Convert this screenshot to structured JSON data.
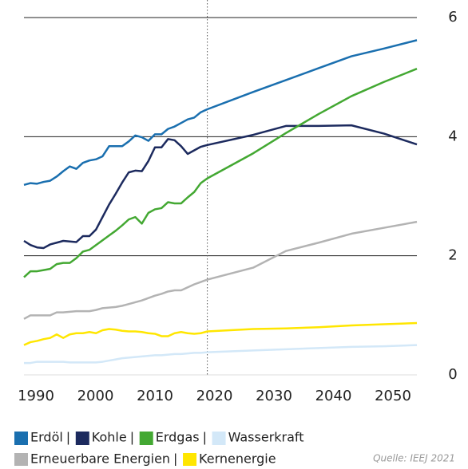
{
  "chart_data": {
    "type": "line",
    "x": [
      1990,
      1991,
      1992,
      1993,
      1994,
      1995,
      1996,
      1997,
      1998,
      1999,
      2000,
      2001,
      2002,
      2003,
      2004,
      2005,
      2006,
      2007,
      2008,
      2009,
      2010,
      2011,
      2012,
      2013,
      2014,
      2015,
      2016,
      2017,
      2018,
      2025,
      2030,
      2035,
      2040,
      2045,
      2050
    ],
    "series": [
      {
        "name": "Erdöl",
        "color": "#1a6faf",
        "values": [
          3.19,
          3.22,
          3.21,
          3.24,
          3.26,
          3.33,
          3.42,
          3.5,
          3.46,
          3.56,
          3.6,
          3.62,
          3.67,
          3.84,
          3.84,
          3.84,
          3.92,
          4.02,
          3.99,
          3.93,
          4.04,
          4.04,
          4.13,
          4.17,
          4.23,
          4.29,
          4.32,
          4.41,
          4.46,
          4.75,
          4.95,
          5.15,
          5.35,
          5.48,
          5.62
        ]
      },
      {
        "name": "Kohle",
        "color": "#1c2a5e",
        "values": [
          2.25,
          2.18,
          2.14,
          2.13,
          2.19,
          2.22,
          2.25,
          2.24,
          2.23,
          2.33,
          2.33,
          2.44,
          2.65,
          2.86,
          3.04,
          3.23,
          3.4,
          3.43,
          3.42,
          3.59,
          3.82,
          3.82,
          3.96,
          3.94,
          3.84,
          3.71,
          3.77,
          3.83,
          3.86,
          4.03,
          4.18,
          4.18,
          4.19,
          4.05,
          3.87
        ]
      },
      {
        "name": "Erdgas",
        "color": "#43a832",
        "values": [
          1.64,
          1.74,
          1.74,
          1.76,
          1.78,
          1.86,
          1.88,
          1.88,
          1.96,
          2.07,
          2.1,
          2.18,
          2.26,
          2.34,
          2.42,
          2.51,
          2.61,
          2.65,
          2.54,
          2.72,
          2.78,
          2.8,
          2.9,
          2.88,
          2.88,
          2.98,
          3.07,
          3.22,
          3.3,
          3.72,
          4.06,
          4.38,
          4.68,
          4.92,
          5.14
        ]
      },
      {
        "name": "Wasserkraft",
        "color": "#d3e8f8",
        "values": [
          0.2,
          0.2,
          0.22,
          0.22,
          0.22,
          0.22,
          0.22,
          0.21,
          0.21,
          0.21,
          0.21,
          0.21,
          0.22,
          0.24,
          0.26,
          0.28,
          0.29,
          0.3,
          0.31,
          0.32,
          0.33,
          0.33,
          0.34,
          0.35,
          0.35,
          0.36,
          0.37,
          0.37,
          0.38,
          0.41,
          0.43,
          0.45,
          0.47,
          0.48,
          0.5
        ]
      },
      {
        "name": "Erneuerbare Energien",
        "color": "#b3b3b3",
        "values": [
          0.94,
          1.0,
          1.0,
          1.0,
          1.0,
          1.05,
          1.05,
          1.06,
          1.07,
          1.07,
          1.07,
          1.09,
          1.12,
          1.13,
          1.14,
          1.16,
          1.19,
          1.22,
          1.25,
          1.29,
          1.33,
          1.36,
          1.4,
          1.42,
          1.42,
          1.47,
          1.52,
          1.56,
          1.6,
          1.8,
          2.08,
          2.22,
          2.37,
          2.47,
          2.57
        ]
      },
      {
        "name": "Kernenergie",
        "color": "#ffe600",
        "values": [
          0.5,
          0.55,
          0.57,
          0.6,
          0.62,
          0.68,
          0.62,
          0.68,
          0.7,
          0.7,
          0.72,
          0.7,
          0.75,
          0.77,
          0.76,
          0.74,
          0.73,
          0.73,
          0.72,
          0.7,
          0.69,
          0.65,
          0.65,
          0.7,
          0.72,
          0.7,
          0.69,
          0.7,
          0.73,
          0.77,
          0.78,
          0.8,
          0.83,
          0.85,
          0.87
        ]
      }
    ],
    "xlim": [
      1990,
      2050
    ],
    "xticks": [
      1990,
      2000,
      2010,
      2020,
      2030,
      2040,
      2050
    ],
    "ylim": [
      0,
      6
    ],
    "yticks": [
      0,
      2,
      4,
      6
    ],
    "reference_line": 2018,
    "source": "Quelle: IEEJ 2021"
  }
}
